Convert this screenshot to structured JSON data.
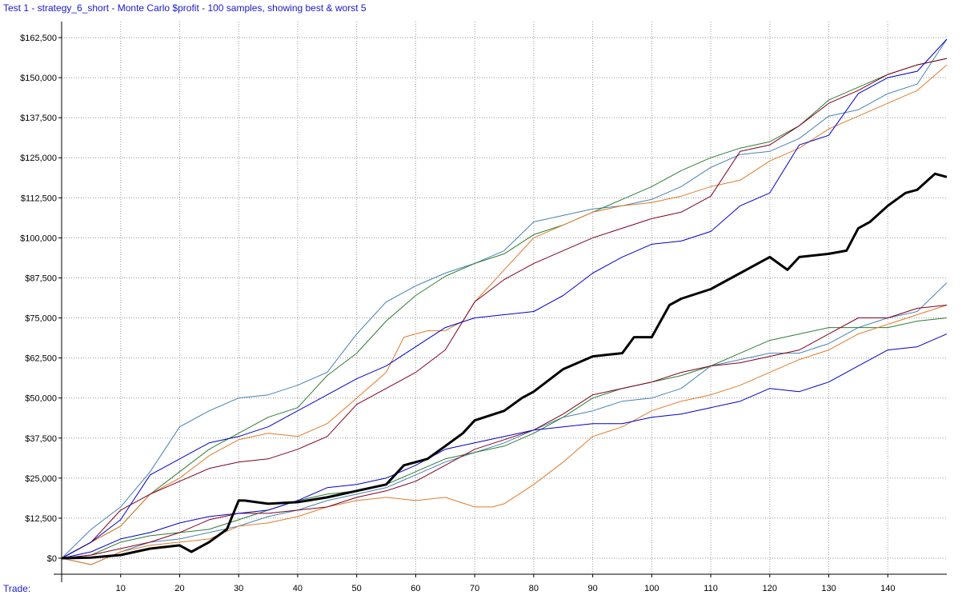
{
  "chart_data": {
    "type": "line",
    "title": "Test 1 - strategy_6_short - Monte Carlo $profit - 100 samples, showing best & worst 5",
    "xlabel": "Trade:",
    "ylabel": "",
    "xlim": [
      0,
      150
    ],
    "ylim": [
      -5000,
      167500
    ],
    "x_ticks": [
      10,
      20,
      30,
      40,
      50,
      60,
      70,
      80,
      90,
      100,
      110,
      120,
      130,
      140
    ],
    "y_ticks": [
      0,
      12500,
      25000,
      37500,
      50000,
      62500,
      75000,
      87500,
      100000,
      112500,
      125000,
      137500,
      150000,
      162500
    ],
    "y_tick_labels": [
      "$0",
      "$12,500",
      "$25,000",
      "$37,500",
      "$50,000",
      "$62,500",
      "$75,000",
      "$87,500",
      "$100,000",
      "$112,500",
      "$125,000",
      "$137,500",
      "$150,000",
      "$162,500"
    ],
    "grid": true,
    "legend": "none",
    "series": [
      {
        "color": "#000000",
        "width": 3,
        "x": [
          0,
          5,
          10,
          15,
          20,
          22,
          25,
          28,
          30,
          31,
          35,
          40,
          45,
          50,
          55,
          58,
          60,
          62,
          65,
          68,
          70,
          75,
          78,
          80,
          85,
          90,
          95,
          97,
          100,
          103,
          105,
          110,
          115,
          120,
          123,
          125,
          130,
          133,
          135,
          137,
          140,
          143,
          145,
          148,
          150
        ],
        "y": [
          0,
          200,
          1000,
          3000,
          4000,
          2000,
          5000,
          9000,
          18000,
          18000,
          17000,
          17500,
          19000,
          21000,
          23000,
          29000,
          30000,
          31000,
          35000,
          39000,
          43000,
          46000,
          50000,
          52000,
          59000,
          63000,
          64000,
          69000,
          69000,
          79000,
          81000,
          84000,
          89000,
          94000,
          90000,
          94000,
          95000,
          96000,
          103000,
          105000,
          110000,
          114000,
          115000,
          120000,
          119000
        ]
      },
      {
        "color": "#4682b4",
        "width": 1,
        "x": [
          0,
          5,
          10,
          15,
          20,
          25,
          30,
          35,
          40,
          45,
          50,
          55,
          60,
          65,
          70,
          75,
          80,
          85,
          90,
          95,
          100,
          105,
          110,
          115,
          120,
          125,
          130,
          135,
          140,
          145,
          150
        ],
        "y": [
          0,
          9000,
          16000,
          27000,
          41000,
          46000,
          50000,
          51000,
          54000,
          58000,
          70000,
          80000,
          85000,
          89000,
          92000,
          96000,
          105000,
          107000,
          109000,
          110000,
          112000,
          116000,
          122000,
          126000,
          127000,
          131000,
          138000,
          140000,
          145000,
          148000,
          162000
        ]
      },
      {
        "color": "#2e7d32",
        "width": 1,
        "x": [
          0,
          5,
          10,
          15,
          20,
          25,
          30,
          35,
          40,
          45,
          50,
          55,
          60,
          65,
          70,
          75,
          80,
          85,
          90,
          95,
          100,
          105,
          110,
          115,
          120,
          125,
          130,
          135,
          140,
          145,
          150
        ],
        "y": [
          0,
          5000,
          10000,
          20000,
          27000,
          34000,
          39000,
          44000,
          47000,
          57000,
          64000,
          74000,
          82000,
          88000,
          92000,
          95000,
          101000,
          104000,
          108000,
          112000,
          116000,
          121000,
          125000,
          128000,
          130000,
          135000,
          143000,
          147000,
          151000,
          154000,
          156000
        ]
      },
      {
        "color": "#e07b2a",
        "width": 1,
        "x": [
          0,
          5,
          10,
          15,
          20,
          25,
          30,
          35,
          40,
          45,
          50,
          55,
          58,
          62,
          65,
          68,
          70,
          73,
          75,
          80,
          85,
          90,
          95,
          100,
          105,
          110,
          115,
          120,
          125,
          130,
          135,
          140,
          145,
          150
        ],
        "y": [
          0,
          5000,
          10000,
          20000,
          25000,
          32000,
          37000,
          39000,
          38000,
          42000,
          50000,
          58000,
          69000,
          71000,
          71000,
          74000,
          80000,
          86000,
          90000,
          100000,
          104000,
          108000,
          110000,
          111000,
          113000,
          116000,
          118000,
          124000,
          128000,
          134000,
          138000,
          142000,
          146000,
          154000
        ]
      },
      {
        "color": "#800020",
        "width": 1,
        "x": [
          0,
          5,
          10,
          15,
          20,
          25,
          30,
          35,
          40,
          45,
          50,
          55,
          60,
          65,
          70,
          75,
          80,
          85,
          90,
          95,
          100,
          105,
          110,
          115,
          120,
          125,
          130,
          135,
          140,
          145,
          150
        ],
        "y": [
          0,
          5000,
          15000,
          20000,
          24000,
          28000,
          30000,
          31000,
          34000,
          38000,
          48000,
          53000,
          58000,
          65000,
          80000,
          87000,
          92000,
          96000,
          100000,
          103000,
          106000,
          108000,
          113000,
          127000,
          129000,
          135000,
          142000,
          146000,
          151000,
          154000,
          156000
        ]
      },
      {
        "color": "#0000cc",
        "width": 1,
        "x": [
          0,
          5,
          10,
          15,
          20,
          25,
          30,
          35,
          40,
          45,
          50,
          55,
          60,
          65,
          70,
          75,
          80,
          85,
          90,
          95,
          100,
          105,
          110,
          115,
          120,
          125,
          130,
          135,
          140,
          145,
          150
        ],
        "y": [
          0,
          5000,
          12000,
          26000,
          31000,
          36000,
          38000,
          41000,
          46000,
          51000,
          56000,
          60000,
          66000,
          72000,
          75000,
          76000,
          77000,
          82000,
          89000,
          94000,
          98000,
          99000,
          102000,
          110000,
          114000,
          129000,
          132000,
          145000,
          150000,
          152000,
          162000
        ]
      },
      {
        "color": "#4682b4",
        "width": 1,
        "x": [
          0,
          5,
          10,
          15,
          20,
          25,
          30,
          35,
          40,
          45,
          50,
          55,
          60,
          65,
          70,
          75,
          80,
          85,
          90,
          95,
          100,
          105,
          110,
          115,
          120,
          125,
          130,
          135,
          140,
          145,
          150
        ],
        "y": [
          0,
          -2000,
          2000,
          5000,
          6000,
          8000,
          10000,
          13000,
          15000,
          18000,
          20000,
          22000,
          26000,
          30000,
          33000,
          36000,
          40000,
          44000,
          46000,
          49000,
          50000,
          53000,
          60000,
          62000,
          64000,
          64000,
          67000,
          72000,
          75000,
          77000,
          86000
        ]
      },
      {
        "color": "#2e7d32",
        "width": 1,
        "x": [
          0,
          5,
          10,
          15,
          20,
          25,
          30,
          35,
          40,
          45,
          50,
          55,
          60,
          65,
          70,
          75,
          80,
          85,
          90,
          95,
          100,
          105,
          110,
          115,
          120,
          125,
          130,
          135,
          140,
          145,
          150
        ],
        "y": [
          0,
          1000,
          5000,
          7000,
          8000,
          9000,
          12000,
          15000,
          18000,
          20000,
          21000,
          23000,
          27000,
          31000,
          33000,
          35000,
          39000,
          44000,
          50000,
          53000,
          55000,
          57000,
          60000,
          64000,
          68000,
          70000,
          72000,
          72000,
          72000,
          74000,
          75000
        ]
      },
      {
        "color": "#e07b2a",
        "width": 1,
        "x": [
          0,
          5,
          10,
          15,
          20,
          25,
          30,
          35,
          40,
          45,
          50,
          55,
          60,
          65,
          70,
          73,
          75,
          80,
          85,
          90,
          95,
          100,
          105,
          110,
          115,
          120,
          125,
          130,
          135,
          140,
          145,
          150
        ],
        "y": [
          0,
          -2000,
          2000,
          4000,
          5000,
          6000,
          10000,
          11000,
          13000,
          16000,
          18000,
          19000,
          18000,
          19000,
          16000,
          16000,
          17000,
          23000,
          30000,
          38000,
          41000,
          46000,
          49000,
          51000,
          54000,
          58000,
          62000,
          65000,
          70000,
          73000,
          76000,
          79000
        ]
      },
      {
        "color": "#800020",
        "width": 1,
        "x": [
          0,
          5,
          10,
          15,
          20,
          25,
          30,
          35,
          40,
          45,
          50,
          55,
          60,
          65,
          70,
          75,
          80,
          85,
          90,
          95,
          100,
          105,
          110,
          115,
          120,
          125,
          130,
          135,
          140,
          145,
          150
        ],
        "y": [
          0,
          1000,
          3000,
          5000,
          8000,
          12000,
          14000,
          14000,
          15000,
          16000,
          19000,
          21000,
          24000,
          29000,
          34000,
          37000,
          40000,
          45000,
          51000,
          53000,
          55000,
          58000,
          60000,
          61000,
          63000,
          65000,
          70000,
          75000,
          75000,
          78000,
          79000
        ]
      },
      {
        "color": "#0000cc",
        "width": 1,
        "x": [
          0,
          5,
          10,
          15,
          20,
          25,
          30,
          35,
          40,
          45,
          50,
          55,
          60,
          65,
          70,
          75,
          80,
          85,
          90,
          95,
          100,
          105,
          110,
          115,
          120,
          125,
          130,
          135,
          140,
          145,
          150
        ],
        "y": [
          0,
          2000,
          6000,
          8000,
          11000,
          13000,
          14000,
          15000,
          18000,
          22000,
          23000,
          25000,
          29000,
          34000,
          36000,
          38000,
          40000,
          41000,
          42000,
          42000,
          44000,
          45000,
          47000,
          49000,
          53000,
          52000,
          55000,
          60000,
          65000,
          66000,
          70000
        ]
      }
    ]
  }
}
